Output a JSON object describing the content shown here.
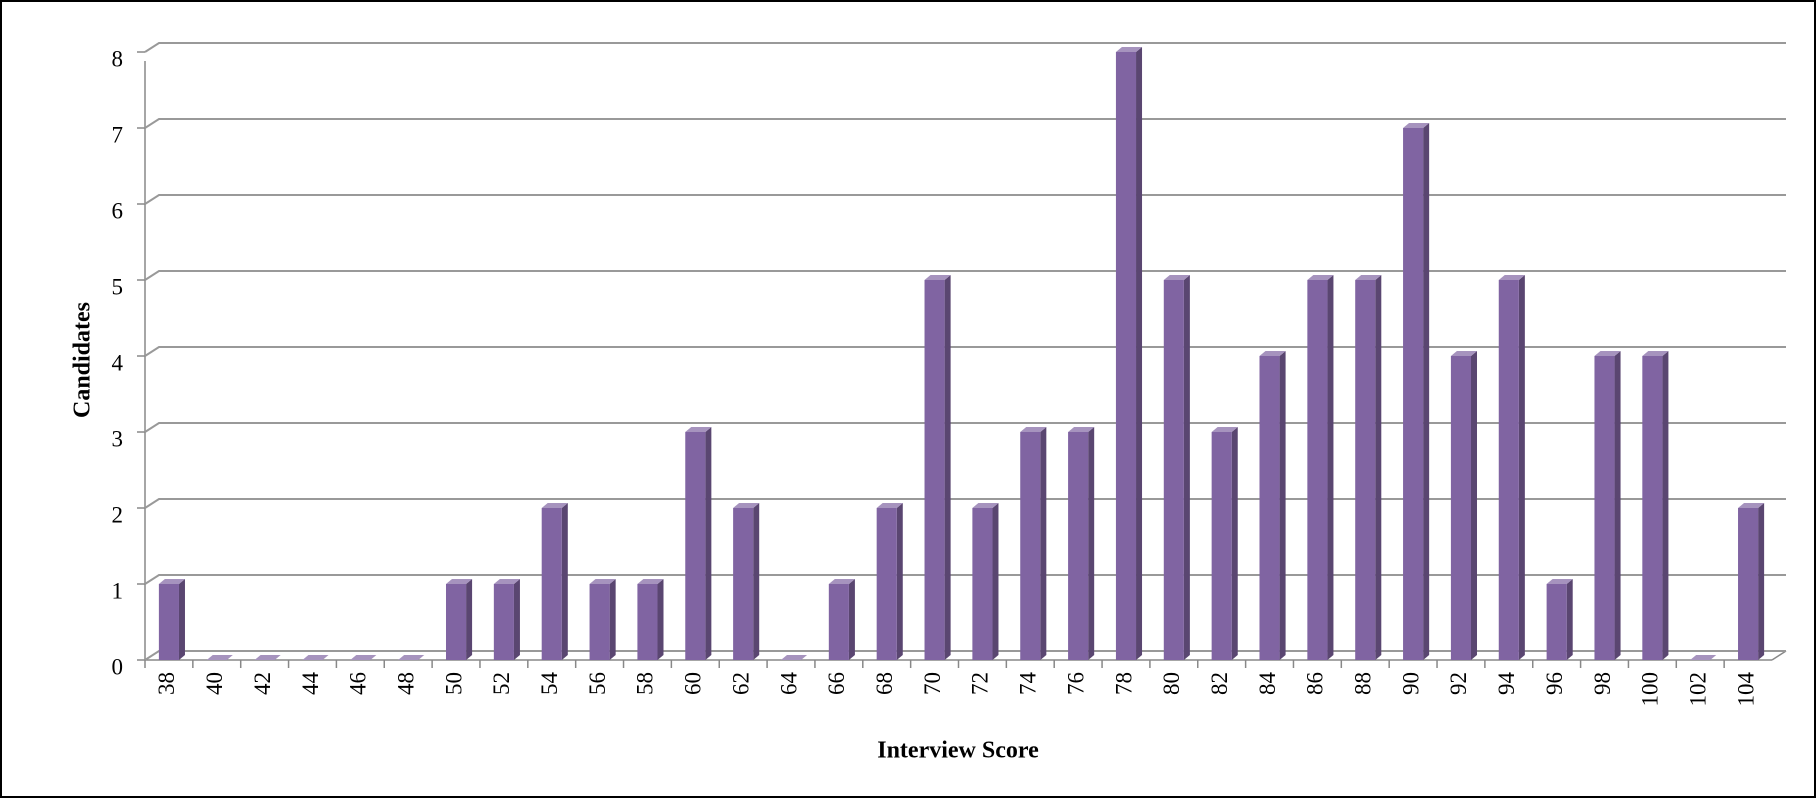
{
  "chart_data": {
    "type": "bar",
    "x_label": "Interview Score",
    "y_label": "Candidates",
    "categories": [
      "38",
      "40",
      "42",
      "44",
      "46",
      "48",
      "50",
      "52",
      "54",
      "56",
      "58",
      "60",
      "62",
      "64",
      "66",
      "68",
      "70",
      "72",
      "74",
      "76",
      "78",
      "80",
      "82",
      "84",
      "86",
      "88",
      "90",
      "92",
      "94",
      "96",
      "98",
      "100",
      "102",
      "104"
    ],
    "values": [
      1,
      0,
      0,
      0,
      0,
      0,
      1,
      1,
      2,
      1,
      1,
      3,
      2,
      0,
      1,
      2,
      5,
      2,
      3,
      3,
      8,
      5,
      3,
      4,
      5,
      5,
      7,
      4,
      5,
      1,
      4,
      4,
      0,
      2
    ],
    "color": "#8064a2",
    "ylim": [
      0,
      8
    ],
    "yticks": [
      0,
      1,
      2,
      3,
      4,
      5,
      6,
      7,
      8
    ],
    "grid": true
  }
}
